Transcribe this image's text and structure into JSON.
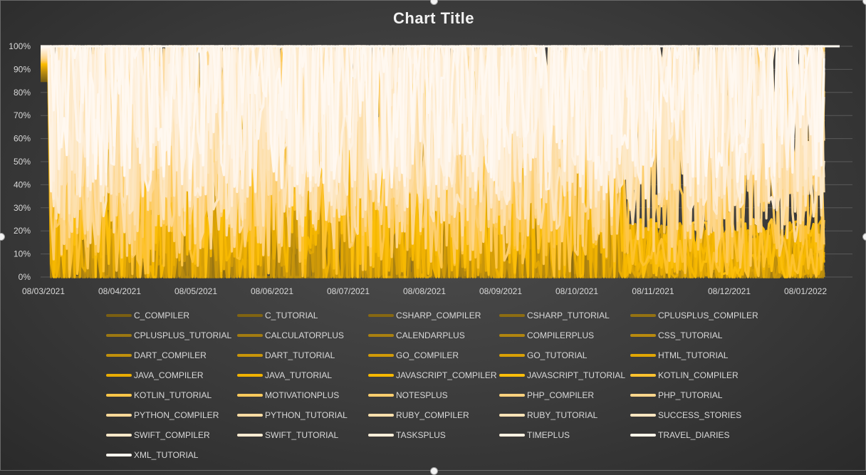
{
  "chart_data": {
    "type": "line",
    "title": "Chart Title",
    "xlabel": "",
    "ylabel": "",
    "ylim": [
      0,
      1
    ],
    "y_ticks": [
      "0%",
      "10%",
      "20%",
      "30%",
      "40%",
      "50%",
      "60%",
      "70%",
      "80%",
      "90%",
      "100%"
    ],
    "x_ticks": [
      "08/03/2021",
      "08/04/2021",
      "08/05/2021",
      "08/06/2021",
      "08/07/2021",
      "08/08/2021",
      "08/09/2021",
      "08/10/2021",
      "08/11/2021",
      "08/12/2021",
      "08/01/2022"
    ],
    "stacking": "percent",
    "grid": true,
    "legend_position": "bottom",
    "series": [
      {
        "name": "C_COMPILER",
        "color": "#7a5f12"
      },
      {
        "name": "C_TUTORIAL",
        "color": "#806412"
      },
      {
        "name": "CSHARP_COMPILER",
        "color": "#866812"
      },
      {
        "name": "CSHARP_TUTORIAL",
        "color": "#8d6d12"
      },
      {
        "name": "CPLUSPLUS_COMPILER",
        "color": "#947212"
      },
      {
        "name": "CPLUSPLUS_TUTORIAL",
        "color": "#9b7712"
      },
      {
        "name": "CALCULATORPLUS",
        "color": "#a27b11"
      },
      {
        "name": "CALENDARPLUS",
        "color": "#a98010"
      },
      {
        "name": "COMPILERPLUS",
        "color": "#b0850f"
      },
      {
        "name": "CSS_TUTORIAL",
        "color": "#b88a0e"
      },
      {
        "name": "DART_COMPILER",
        "color": "#c0900c"
      },
      {
        "name": "DART_TUTORIAL",
        "color": "#c8950a"
      },
      {
        "name": "GO_COMPILER",
        "color": "#d09a08"
      },
      {
        "name": "GO_TUTORIAL",
        "color": "#d8a006"
      },
      {
        "name": "HTML_TUTORIAL",
        "color": "#e0a604"
      },
      {
        "name": "JAVA_COMPILER",
        "color": "#e8ac03"
      },
      {
        "name": "JAVA_TUTORIAL",
        "color": "#f0b202"
      },
      {
        "name": "JAVASCRIPT_COMPILER",
        "color": "#f6b801"
      },
      {
        "name": "JAVASCRIPT_TUTORIAL",
        "color": "#fbbe0a"
      },
      {
        "name": "KOTLIN_COMPILER",
        "color": "#fdc22e"
      },
      {
        "name": "KOTLIN_TUTORIAL",
        "color": "#fdc648"
      },
      {
        "name": "MOTIVATIONPLUS",
        "color": "#fdca5c"
      },
      {
        "name": "NOTESPLUS",
        "color": "#fdce6e"
      },
      {
        "name": "PHP_COMPILER",
        "color": "#fdd27e"
      },
      {
        "name": "PHP_TUTORIAL",
        "color": "#fdd68c"
      },
      {
        "name": "PYTHON_COMPILER",
        "color": "#fdd998"
      },
      {
        "name": "PYTHON_TUTORIAL",
        "color": "#fddca3"
      },
      {
        "name": "RUBY_COMPILER",
        "color": "#fde0ad"
      },
      {
        "name": "RUBY_TUTORIAL",
        "color": "#fde3b7"
      },
      {
        "name": "SUCCESS_STORIES",
        "color": "#fde6c0"
      },
      {
        "name": "SWIFT_COMPILER",
        "color": "#fde9c9"
      },
      {
        "name": "SWIFT_TUTORIAL",
        "color": "#feecd2"
      },
      {
        "name": "TASKSPLUS",
        "color": "#feefda"
      },
      {
        "name": "TIMEPLUS",
        "color": "#fef2e2"
      },
      {
        "name": "TRAVEL_DIARIES",
        "color": "#fef5ea"
      },
      {
        "name": "XML_TUTORIAL",
        "color": "#fff8f0"
      }
    ]
  }
}
